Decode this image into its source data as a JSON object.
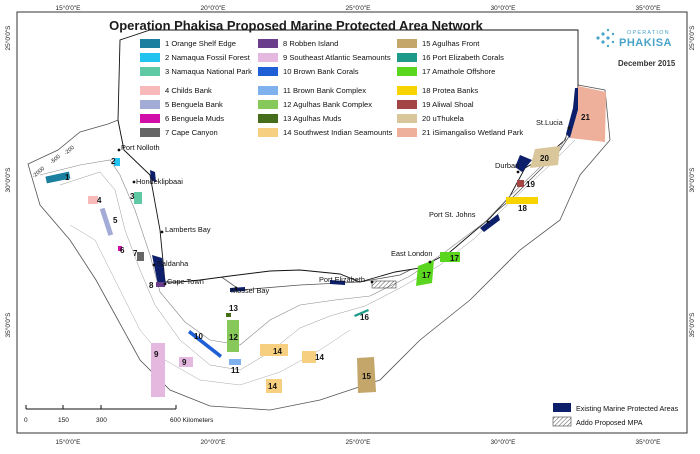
{
  "title": "Operation Phakisa Proposed Marine Protected Area Network",
  "date": "December 2015",
  "brand": {
    "top": "OPERATION",
    "name": "PHAKISA"
  },
  "lon_ticks": [
    "15°0'0\"E",
    "20°0'0\"E",
    "25°0'0\"E",
    "30°0'0\"E",
    "35°0'0\"E"
  ],
  "lat_ticks": [
    "25°0'0\"S",
    "30°0'0\"S",
    "35°0'0\"S"
  ],
  "legend": [
    {
      "label": "1 Orange Shelf Edge",
      "color": "#1b7f9f"
    },
    {
      "label": "2 Namaqua Fossil Forest",
      "color": "#22c3ee"
    },
    {
      "label": "3 Namaqua National Park",
      "color": "#5ec9a3"
    },
    {
      "label": "4 Childs Bank",
      "color": "#f7b9b9"
    },
    {
      "label": "5 Benguela Bank",
      "color": "#a3acd6"
    },
    {
      "label": "6 Benguela Muds",
      "color": "#d10fa8"
    },
    {
      "label": "7 Cape Canyon",
      "color": "#666666"
    },
    {
      "label": "8 Robben Island",
      "color": "#6a3c8c"
    },
    {
      "label": "9 Southeast Atlantic Seamounts",
      "color": "#e5b8e0"
    },
    {
      "label": "10 Brown Bank Corals",
      "color": "#1e5fd6"
    },
    {
      "label": "11 Brown Bank Complex",
      "color": "#7fb1ef"
    },
    {
      "label": "12 Agulhas Bank Complex",
      "color": "#86c95a"
    },
    {
      "label": "13 Agulhas Muds",
      "color": "#466e1a"
    },
    {
      "label": "14 Southwest Indian Seamounts",
      "color": "#f7cf80"
    },
    {
      "label": "15 Agulhas Front",
      "color": "#c4a56a"
    },
    {
      "label": "16 Port Elizabeth Corals",
      "color": "#1e9a8a"
    },
    {
      "label": "17 Amathole Offshore",
      "color": "#5ad61e"
    },
    {
      "label": "18 Protea Banks",
      "color": "#f7d400"
    },
    {
      "label": "19 Aliwal Shoal",
      "color": "#a34545"
    },
    {
      "label": "20 uThukela",
      "color": "#d9c79b"
    },
    {
      "label": "21 iSimangaliso Wetland Park",
      "color": "#eeb09a"
    }
  ],
  "mpa_numbers": [
    "1",
    "2",
    "3",
    "4",
    "5",
    "6",
    "7",
    "8",
    "9",
    "9",
    "10",
    "11",
    "12",
    "13",
    "14",
    "14",
    "14",
    "15",
    "16",
    "17",
    "17",
    "18",
    "19",
    "20",
    "21"
  ],
  "places": [
    "Port Nolloth",
    "Hondeklipbaai",
    "Lamberts Bay",
    "Saldanha",
    "Cape Town",
    "Mossel Bay",
    "Port Elizabeth",
    "East London",
    "Port St. Johns",
    "Durban",
    "St.Lucia"
  ],
  "depth_labels": [
    "-2000",
    "-500",
    "-200"
  ],
  "scale": {
    "ticks": [
      "0",
      "150",
      "300",
      "600 Kilometers"
    ]
  },
  "map_legend": [
    {
      "label": "Existing Marine Protected Areas",
      "color": "#0d1f6b"
    },
    {
      "label": "Addo Proposed MPA",
      "color": "hatch"
    }
  ]
}
